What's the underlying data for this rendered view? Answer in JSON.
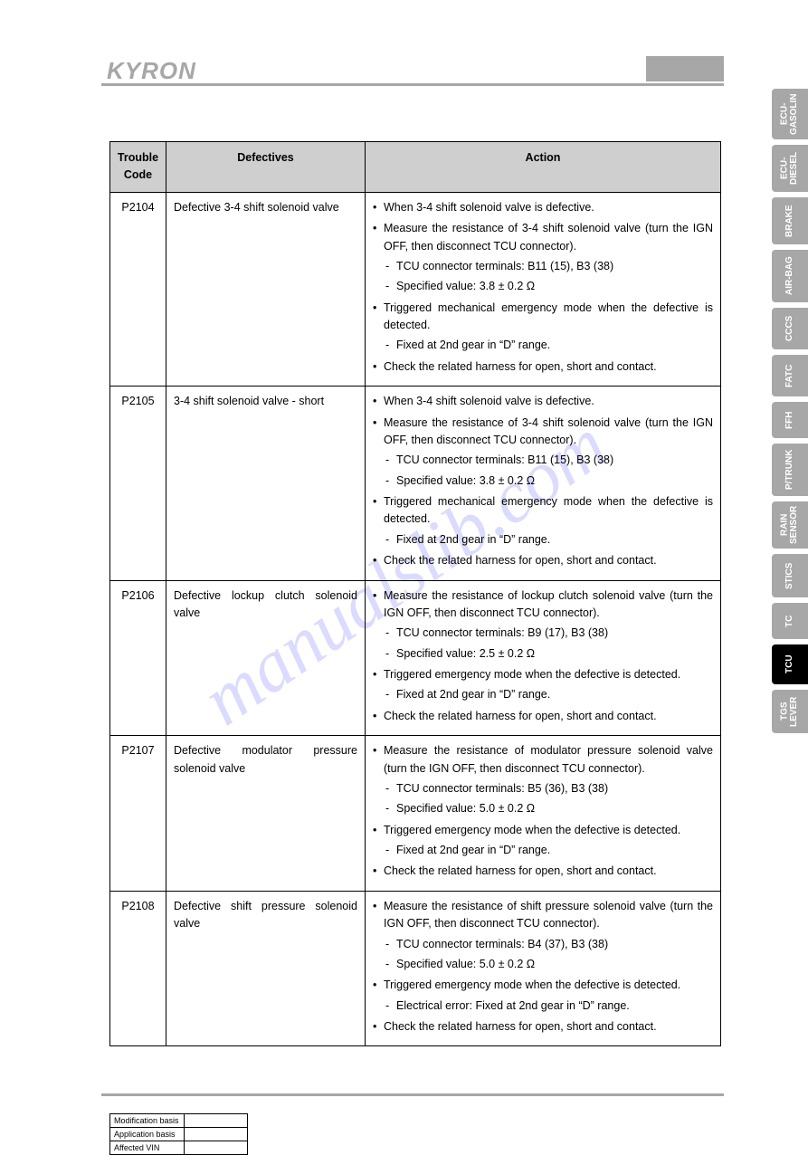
{
  "logo_text": "KYRON",
  "watermark": "manualslib.com",
  "tabs": [
    {
      "label": "ECU-\nGASOLIN",
      "h": 56,
      "style": "grey"
    },
    {
      "label": "ECU-\nDIESEL",
      "h": 52,
      "style": "grey"
    },
    {
      "label": "BRAKE",
      "h": 52,
      "style": "grey"
    },
    {
      "label": "AIR-BAG",
      "h": 58,
      "style": "grey"
    },
    {
      "label": "CCCS",
      "h": 46,
      "style": "grey"
    },
    {
      "label": "FATC",
      "h": 46,
      "style": "grey"
    },
    {
      "label": "FFH",
      "h": 40,
      "style": "grey"
    },
    {
      "label": "P/TRUNK",
      "h": 58,
      "style": "grey"
    },
    {
      "label": "RAIN\nSENSOR",
      "h": 52,
      "style": "grey"
    },
    {
      "label": "STICS",
      "h": 48,
      "style": "grey"
    },
    {
      "label": "TC",
      "h": 40,
      "style": "grey"
    },
    {
      "label": "TCU",
      "h": 44,
      "style": "black"
    },
    {
      "label": "TGS\nLEVER",
      "h": 48,
      "style": "grey"
    }
  ],
  "table": {
    "headers": [
      "Trouble\nCode",
      "Defectives",
      "Action"
    ],
    "rows": [
      {
        "code": "P2104",
        "def": "Defective 3-4 shift solenoid valve",
        "action": [
          {
            "t": "When 3-4 shift solenoid valve is defective."
          },
          {
            "t": "Measure the resistance of 3-4 shift solenoid valve (turn the IGN OFF, then disconnect TCU connector).",
            "sub": [
              "TCU connector terminals: B11 (15), B3 (38)",
              "Specified value: 3.8 ± 0.2 Ω"
            ]
          },
          {
            "t": "Triggered mechanical emergency mode when the defective is detected.",
            "sub": [
              "Fixed at 2nd gear in “D” range."
            ]
          },
          {
            "t": "Check the related harness for open, short and contact."
          }
        ]
      },
      {
        "code": "P2105",
        "def": "3-4 shift solenoid valve - short",
        "action": [
          {
            "t": "When 3-4 shift solenoid valve is defective."
          },
          {
            "t": "Measure the resistance of 3-4 shift solenoid valve (turn the IGN OFF, then disconnect TCU connector).",
            "sub": [
              "TCU connector terminals: B11 (15), B3 (38)",
              "Specified value: 3.8 ± 0.2 Ω"
            ]
          },
          {
            "t": "Triggered mechanical emergency mode when the defective is detected.",
            "sub": [
              "Fixed at 2nd gear in “D” range."
            ]
          },
          {
            "t": "Check the related harness for open, short and contact."
          }
        ]
      },
      {
        "code": "P2106",
        "def": "Defective lockup clutch solenoid valve",
        "action": [
          {
            "t": "Measure the resistance of lockup clutch solenoid valve (turn the IGN OFF, then disconnect TCU connector).",
            "sub": [
              "TCU connector terminals: B9 (17), B3 (38)",
              "Specified value: 2.5 ± 0.2 Ω"
            ]
          },
          {
            "t": "Triggered emergency mode when the defective is detected.",
            "sub": [
              "Fixed at 2nd gear in “D” range."
            ]
          },
          {
            "t": "Check the related harness for open, short and contact."
          }
        ]
      },
      {
        "code": "P2107",
        "def": "Defective modulator pressure solenoid valve",
        "action": [
          {
            "t": "Measure the resistance of modulator pressure solenoid valve (turn the IGN OFF, then disconnect TCU connector).",
            "sub": [
              "TCU connector terminals: B5 (36), B3 (38)",
              "Specified value: 5.0 ± 0.2 Ω"
            ]
          },
          {
            "t": "Triggered emergency mode when the defective is detected.",
            "sub": [
              "Fixed at 2nd gear in “D” range."
            ]
          },
          {
            "t": "Check the related harness for open, short and contact."
          }
        ]
      },
      {
        "code": "P2108",
        "def": "Defective shift pressure solenoid valve",
        "action": [
          {
            "t": "Measure the resistance of shift pressure solenoid valve (turn the IGN OFF, then disconnect TCU connector).",
            "sub": [
              "TCU connector terminals: B4 (37), B3 (38)",
              "Specified value: 5.0 ± 0.2 Ω"
            ]
          },
          {
            "t": "Triggered emergency mode when the defective is detected.",
            "sub": [
              "Electrical error: Fixed at 2nd gear in “D” range."
            ]
          },
          {
            "t": "Check the related harness for open, short and contact."
          }
        ]
      }
    ]
  },
  "mini": [
    "Modification basis",
    "Application basis",
    "Affected VIN"
  ]
}
